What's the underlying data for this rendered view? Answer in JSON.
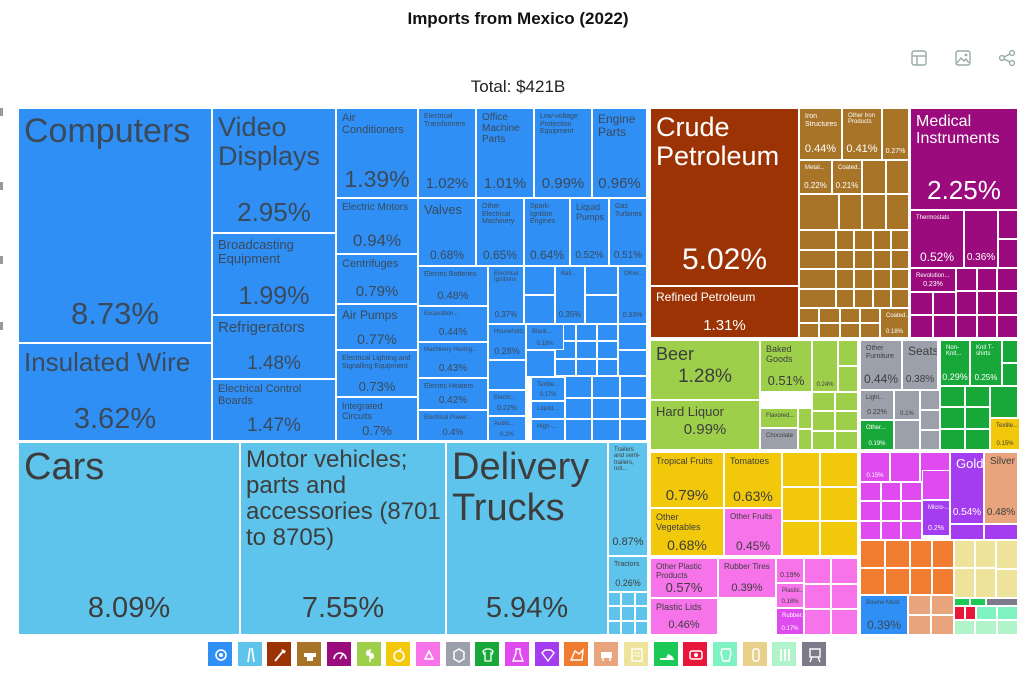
{
  "chart_data": {
    "type": "treemap",
    "title": "Imports from Mexico (2022)",
    "total_label": "Total: $421B",
    "sectors": [
      {
        "name": "Machines",
        "color": "#2f8ff5"
      },
      {
        "name": "Transportation",
        "color": "#5ec4ec"
      },
      {
        "name": "Mineral Products",
        "color": "#9c3305"
      },
      {
        "name": "Metals",
        "color": "#a77428"
      },
      {
        "name": "Instruments",
        "color": "#9b0b7d"
      },
      {
        "name": "Foodstuffs",
        "color": "#9dcf4b"
      },
      {
        "name": "Vegetable Products",
        "color": "#f2c80b"
      },
      {
        "name": "Plastics and Rubbers",
        "color": "#f673ea"
      },
      {
        "name": "Miscellaneous",
        "color": "#9ba0ab"
      },
      {
        "name": "Textiles",
        "color": "#18a83a"
      },
      {
        "name": "Chemical Products",
        "color": "#e04bf0"
      },
      {
        "name": "Precious Metals",
        "color": "#a43cf0"
      },
      {
        "name": "Stone and Glass",
        "color": "#f07c30"
      },
      {
        "name": "Animal Products",
        "color": "#e8a47c"
      },
      {
        "name": "Paper Goods",
        "color": "#ede39b"
      },
      {
        "name": "Footwear and Headwear",
        "color": "#1bc957"
      },
      {
        "name": "Arts and Antiques",
        "color": "#e8163a"
      },
      {
        "name": "Animal Hides",
        "color": "#7ff2c2"
      },
      {
        "name": "Animal and Vegetable Bi-Products",
        "color": "#e7d08a"
      },
      {
        "name": "Wood Products",
        "color": "#b2f4ca"
      },
      {
        "name": "Weapons",
        "color": "#7d7a8c"
      }
    ],
    "items": [
      {
        "label": "Computers",
        "share": "8.73%",
        "sector": "Machines"
      },
      {
        "label": "Insulated Wire",
        "share": "3.62%",
        "sector": "Machines"
      },
      {
        "label": "Video Displays",
        "share": "2.95%",
        "sector": "Machines"
      },
      {
        "label": "Broadcasting Equipment",
        "share": "1.99%",
        "sector": "Machines"
      },
      {
        "label": "Refrigerators",
        "share": "1.48%",
        "sector": "Machines"
      },
      {
        "label": "Electrical Control Boards",
        "share": "1.47%",
        "sector": "Machines"
      },
      {
        "label": "Air Conditioners",
        "share": "1.39%",
        "sector": "Machines"
      },
      {
        "label": "Electric Motors",
        "share": "0.94%",
        "sector": "Machines"
      },
      {
        "label": "Centrifuges",
        "share": "0.79%",
        "sector": "Machines"
      },
      {
        "label": "Air Pumps",
        "share": "0.77%",
        "sector": "Machines"
      },
      {
        "label": "Electrical Lighting and Signalling Equipment",
        "share": "0.73%",
        "sector": "Machines"
      },
      {
        "label": "Integrated Circuits",
        "share": "0.7%",
        "sector": "Machines"
      },
      {
        "label": "Electrical Transformers",
        "share": "1.02%",
        "sector": "Machines"
      },
      {
        "label": "Office Machine Parts",
        "share": "1.01%",
        "sector": "Machines"
      },
      {
        "label": "Low-voltage Protection Equipment",
        "share": "0.99%",
        "sector": "Machines"
      },
      {
        "label": "Engine Parts",
        "share": "0.96%",
        "sector": "Machines"
      },
      {
        "label": "Valves",
        "share": "0.68%",
        "sector": "Machines"
      },
      {
        "label": "Other Electrical Machinery",
        "share": "0.65%",
        "sector": "Machines"
      },
      {
        "label": "Spark-Ignition Engines",
        "share": "0.64%",
        "sector": "Machines"
      },
      {
        "label": "Liquid Pumps",
        "share": "0.52%",
        "sector": "Machines"
      },
      {
        "label": "Gas Turbines",
        "share": "0.51%",
        "sector": "Machines"
      },
      {
        "label": "Electric Batteries",
        "share": "0.48%",
        "sector": "Machines"
      },
      {
        "label": "Excavation...",
        "share": "0.44%",
        "sector": "Machines"
      },
      {
        "label": "Machinery Having...",
        "share": "0.43%",
        "sector": "Machines"
      },
      {
        "label": "Electric Heaters",
        "share": "0.42%",
        "sector": "Machines"
      },
      {
        "label": "Electrical Power...",
        "share": "0.4%",
        "sector": "Machines"
      },
      {
        "label": "Electrical Ignitions",
        "share": "0.37%",
        "sector": "Machines"
      },
      {
        "label": "Ball...",
        "share": "0.35%",
        "sector": "Machines"
      },
      {
        "label": "Other...",
        "share": "0.33%",
        "sector": "Machines"
      },
      {
        "label": "Household...",
        "share": "0.28%",
        "sector": "Machines"
      },
      {
        "label": "Blank...",
        "share": "0.18%",
        "sector": "Machines"
      },
      {
        "label": "Audio...",
        "share": "0.2%",
        "sector": "Machines"
      },
      {
        "label": "Electri...",
        "share": "0.22%",
        "sector": "Machines"
      },
      {
        "label": "Textile...",
        "share": "0.17%",
        "sector": "Machines"
      },
      {
        "label": "Liquid...",
        "share": "",
        "sector": "Machines"
      },
      {
        "label": "High-...",
        "share": "",
        "sector": "Machines"
      },
      {
        "label": "Cars",
        "share": "8.09%",
        "sector": "Transportation"
      },
      {
        "label": "Motor vehicles; parts and accessories (8701 to 8705)",
        "share": "7.55%",
        "sector": "Transportation"
      },
      {
        "label": "Delivery Trucks",
        "share": "5.94%",
        "sector": "Transportation"
      },
      {
        "label": "Trailers and semi-trailers, not...",
        "share": "0.87%",
        "sector": "Transportation"
      },
      {
        "label": "Tractors",
        "share": "0.26%",
        "sector": "Transportation"
      },
      {
        "label": "Crude Petroleum",
        "share": "5.02%",
        "sector": "Mineral Products"
      },
      {
        "label": "Refined Petroleum",
        "share": "1.31%",
        "sector": "Mineral Products"
      },
      {
        "label": "Iron Structures",
        "share": "0.44%",
        "sector": "Metals"
      },
      {
        "label": "Other Iron Products",
        "share": "0.41%",
        "sector": "Metals"
      },
      {
        "label": "Metal...",
        "share": "0.22%",
        "sector": "Metals"
      },
      {
        "label": "Coated...",
        "share": "0.21%",
        "sector": "Metals"
      },
      {
        "label": "Coated...",
        "share": "0.18%",
        "sector": "Metals"
      },
      {
        "label": "Medical Instruments",
        "share": "2.25%",
        "sector": "Instruments"
      },
      {
        "label": "Thermostats",
        "share": "0.52%",
        "sector": "Instruments"
      },
      {
        "label": "Revolution...",
        "share": "0.23%",
        "sector": "Instruments"
      },
      {
        "label": "Beer",
        "share": "1.28%",
        "sector": "Foodstuffs"
      },
      {
        "label": "Hard Liquor",
        "share": "0.99%",
        "sector": "Foodstuffs"
      },
      {
        "label": "Baked Goods",
        "share": "0.51%",
        "sector": "Foodstuffs"
      },
      {
        "label": "Flavored...",
        "share": "",
        "sector": "Foodstuffs"
      },
      {
        "label": "Chocolate",
        "share": "",
        "sector": "Foodstuffs"
      },
      {
        "label": "Tropical Fruits",
        "share": "0.79%",
        "sector": "Vegetable Products"
      },
      {
        "label": "Tomatoes",
        "share": "0.63%",
        "sector": "Vegetable Products"
      },
      {
        "label": "Other Vegetables",
        "share": "0.68%",
        "sector": "Vegetable Products"
      },
      {
        "label": "Other Fruits",
        "share": "0.45%",
        "sector": "Vegetable Products"
      },
      {
        "label": "Other Plastic Products",
        "share": "0.57%",
        "sector": "Plastics and Rubbers"
      },
      {
        "label": "Rubber Tires",
        "share": "0.39%",
        "sector": "Plastics and Rubbers"
      },
      {
        "label": "Plastic Lids",
        "share": "0.46%",
        "sector": "Plastics and Rubbers"
      },
      {
        "label": "Other Furniture",
        "share": "0.44%",
        "sector": "Miscellaneous"
      },
      {
        "label": "Seats",
        "share": "0.38%",
        "sector": "Miscellaneous"
      },
      {
        "label": "Non-Knit...",
        "share": "0.29%",
        "sector": "Textiles"
      },
      {
        "label": "Knit T-shirts",
        "share": "0.25%",
        "sector": "Textiles"
      },
      {
        "label": "Textile...",
        "share": "0.15%",
        "sector": "Textiles"
      },
      {
        "label": "Gold",
        "share": "0.54%",
        "sector": "Precious Metals"
      },
      {
        "label": "Silver",
        "share": "0.48%",
        "sector": "Precious Metals"
      },
      {
        "label": "Bovine Meat",
        "share": "0.39%",
        "sector": "Animal Products"
      }
    ]
  },
  "toolbar": [
    "table-icon",
    "image-icon",
    "share-icon"
  ]
}
